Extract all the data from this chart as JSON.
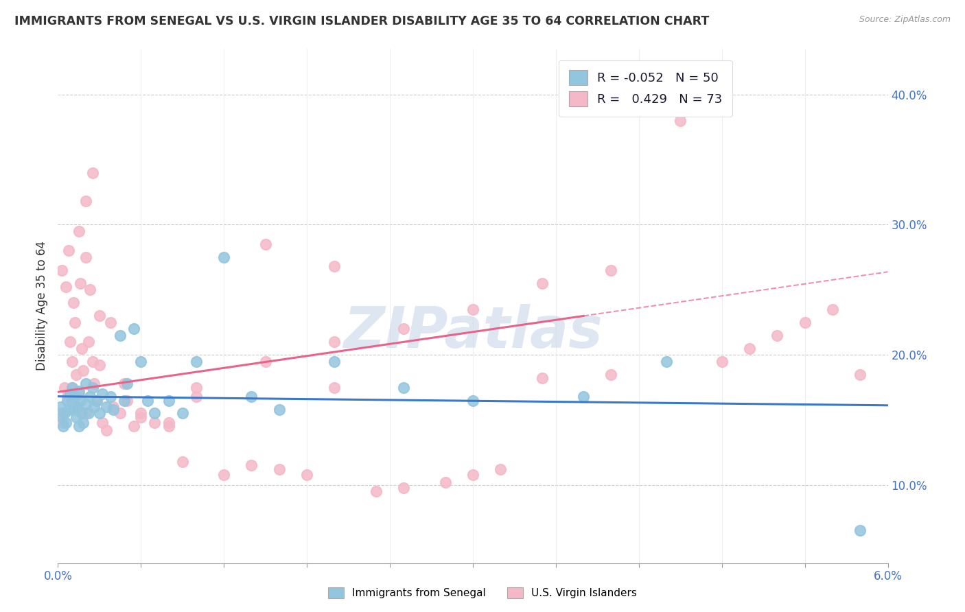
{
  "title": "IMMIGRANTS FROM SENEGAL VS U.S. VIRGIN ISLANDER DISABILITY AGE 35 TO 64 CORRELATION CHART",
  "source": "Source: ZipAtlas.com",
  "ylabel": "Disability Age 35 to 64",
  "x_min": 0.0,
  "x_max": 0.06,
  "y_min": 0.04,
  "y_max": 0.435,
  "y_ticks": [
    0.1,
    0.2,
    0.3,
    0.4
  ],
  "y_tick_labels": [
    "10.0%",
    "20.0%",
    "30.0%",
    "40.0%"
  ],
  "legend_R1": "-0.052",
  "legend_N1": "50",
  "legend_R2": "0.429",
  "legend_N2": "73",
  "color_blue": "#92c5de",
  "color_pink": "#f4b8c8",
  "trend_blue": "#3a78c9",
  "trend_pink": "#e8638a",
  "watermark": "ZIPatlas",
  "blue_scatter_x": [
    0.0002,
    0.0003,
    0.0004,
    0.0005,
    0.0006,
    0.0007,
    0.0008,
    0.0009,
    0.001,
    0.001,
    0.0011,
    0.0012,
    0.0013,
    0.0014,
    0.0015,
    0.0015,
    0.0016,
    0.0017,
    0.0018,
    0.002,
    0.002,
    0.0022,
    0.0023,
    0.0025,
    0.0026,
    0.0028,
    0.003,
    0.0032,
    0.0035,
    0.0038,
    0.004,
    0.0045,
    0.0048,
    0.005,
    0.0055,
    0.006,
    0.0065,
    0.007,
    0.008,
    0.009,
    0.01,
    0.012,
    0.014,
    0.016,
    0.02,
    0.025,
    0.03,
    0.038,
    0.044,
    0.058
  ],
  "blue_scatter_y": [
    0.16,
    0.152,
    0.145,
    0.155,
    0.148,
    0.165,
    0.158,
    0.17,
    0.163,
    0.175,
    0.158,
    0.168,
    0.152,
    0.16,
    0.145,
    0.172,
    0.165,
    0.155,
    0.148,
    0.178,
    0.162,
    0.155,
    0.168,
    0.175,
    0.16,
    0.165,
    0.155,
    0.17,
    0.16,
    0.168,
    0.158,
    0.215,
    0.165,
    0.178,
    0.22,
    0.195,
    0.165,
    0.155,
    0.165,
    0.155,
    0.195,
    0.275,
    0.168,
    0.158,
    0.195,
    0.175,
    0.165,
    0.168,
    0.195,
    0.065
  ],
  "pink_scatter_x": [
    0.0002,
    0.0003,
    0.0004,
    0.0005,
    0.0006,
    0.0007,
    0.0008,
    0.0009,
    0.001,
    0.001,
    0.0011,
    0.0012,
    0.0013,
    0.0014,
    0.0015,
    0.0015,
    0.0016,
    0.0017,
    0.0018,
    0.002,
    0.002,
    0.0022,
    0.0023,
    0.0025,
    0.0026,
    0.0028,
    0.003,
    0.0032,
    0.0035,
    0.0038,
    0.004,
    0.0045,
    0.0048,
    0.005,
    0.0055,
    0.006,
    0.007,
    0.008,
    0.009,
    0.01,
    0.012,
    0.014,
    0.016,
    0.018,
    0.02,
    0.023,
    0.025,
    0.028,
    0.03,
    0.032,
    0.006,
    0.008,
    0.01,
    0.015,
    0.02,
    0.025,
    0.03,
    0.035,
    0.04,
    0.045,
    0.035,
    0.04,
    0.048,
    0.05,
    0.052,
    0.054,
    0.056,
    0.058,
    0.015,
    0.02,
    0.002,
    0.0025,
    0.003
  ],
  "pink_scatter_y": [
    0.155,
    0.265,
    0.148,
    0.175,
    0.252,
    0.168,
    0.28,
    0.21,
    0.195,
    0.175,
    0.24,
    0.225,
    0.185,
    0.16,
    0.295,
    0.17,
    0.255,
    0.205,
    0.188,
    0.275,
    0.155,
    0.21,
    0.25,
    0.195,
    0.178,
    0.165,
    0.192,
    0.148,
    0.142,
    0.225,
    0.16,
    0.155,
    0.178,
    0.165,
    0.145,
    0.152,
    0.148,
    0.145,
    0.118,
    0.175,
    0.108,
    0.115,
    0.112,
    0.108,
    0.175,
    0.095,
    0.098,
    0.102,
    0.108,
    0.112,
    0.155,
    0.148,
    0.168,
    0.195,
    0.21,
    0.22,
    0.235,
    0.255,
    0.265,
    0.38,
    0.182,
    0.185,
    0.195,
    0.205,
    0.215,
    0.225,
    0.235,
    0.185,
    0.285,
    0.268,
    0.318,
    0.34,
    0.23
  ]
}
